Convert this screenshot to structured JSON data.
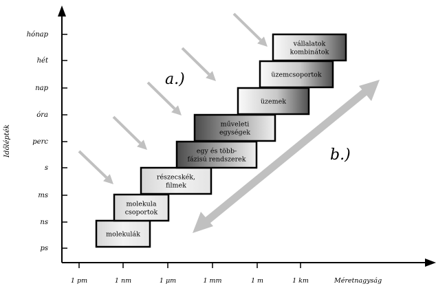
{
  "y_axis": {
    "label": "Időlépték",
    "ticks": [
      "ps",
      "ns",
      "ms",
      "s",
      "perc",
      "óra",
      "nap",
      "hét",
      "hónap"
    ]
  },
  "x_axis": {
    "label": "Méretnagyság",
    "ticks": [
      "1 pm",
      "1 nm",
      "1 μm",
      "1 mm",
      "1 m",
      "1 km"
    ]
  },
  "boxes": [
    {
      "id": "molekulak",
      "lines": [
        "molekulák"
      ],
      "shade": "light"
    },
    {
      "id": "molekula-csoportok",
      "lines": [
        "molekula",
        "csoportok"
      ],
      "shade": "light"
    },
    {
      "id": "reszecskek-filmek",
      "lines": [
        "részecskék,",
        "filmek"
      ],
      "shade": "light"
    },
    {
      "id": "egy-es-tobb-fazisu-rendszerek",
      "lines": [
        "egy és több-",
        "fázisú rendszerek"
      ],
      "shade": "dark-left"
    },
    {
      "id": "muveleti-egysegek",
      "lines": [
        "műveleti",
        "egységek"
      ],
      "shade": "dark-left"
    },
    {
      "id": "uzemek",
      "lines": [
        "üzemek"
      ],
      "shade": "dark-right"
    },
    {
      "id": "uzemcsoportok",
      "lines": [
        "üzemcsoportok"
      ],
      "shade": "dark-right"
    },
    {
      "id": "vallalatok-kombinatok",
      "lines": [
        "vállalatok",
        "kombinátok"
      ],
      "shade": "dark-right"
    }
  ],
  "annotations": {
    "a": "a.)",
    "b": "b.)"
  },
  "colors": {
    "axis": "#000000",
    "arrow_gray": "#c0c0c0",
    "box_dark": "#555555",
    "box_light": "#f2f2f2"
  }
}
